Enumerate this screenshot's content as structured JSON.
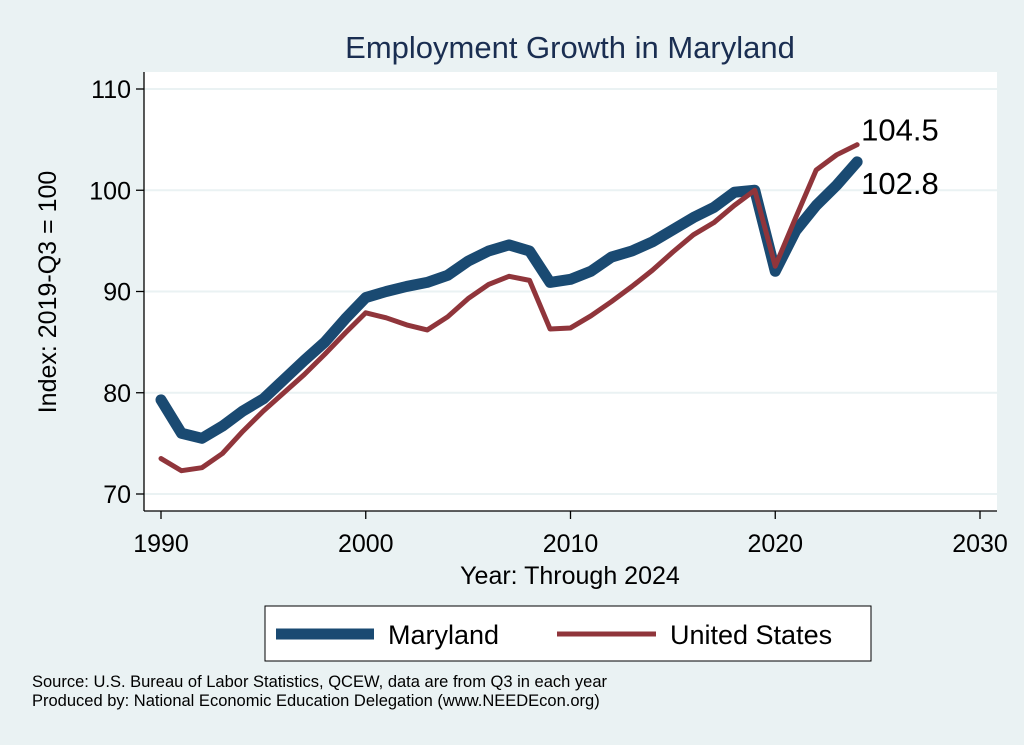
{
  "chart_data": {
    "type": "line",
    "title": "Employment Growth in Maryland",
    "xlabel": "Year: Through 2024",
    "ylabel": "Index: 2019-Q3 = 100",
    "xlim": [
      1990,
      2030
    ],
    "ylim": [
      70,
      110
    ],
    "xticks": [
      1990,
      2000,
      2010,
      2020,
      2030
    ],
    "yticks": [
      70,
      80,
      90,
      100,
      110
    ],
    "grid": true,
    "legend_position": "bottom",
    "x": [
      1990,
      1991,
      1992,
      1993,
      1994,
      1995,
      1996,
      1997,
      1998,
      1999,
      2000,
      2001,
      2002,
      2003,
      2004,
      2005,
      2006,
      2007,
      2008,
      2009,
      2010,
      2011,
      2012,
      2013,
      2014,
      2015,
      2016,
      2017,
      2018,
      2019,
      2020,
      2021,
      2022,
      2023,
      2024
    ],
    "series": [
      {
        "name": "Maryland",
        "color": "#1a4a72",
        "values": [
          79.3,
          76.0,
          75.5,
          76.7,
          78.2,
          79.4,
          81.3,
          83.2,
          85.0,
          87.3,
          89.4,
          90.0,
          90.5,
          90.9,
          91.6,
          93.0,
          94.0,
          94.6,
          94.0,
          90.9,
          91.2,
          92.0,
          93.4,
          94.0,
          94.9,
          96.1,
          97.3,
          98.3,
          99.8,
          100.0,
          92.0,
          96.0,
          98.5,
          100.5,
          102.8
        ],
        "end_label": "102.8"
      },
      {
        "name": "United States",
        "color": "#90353b",
        "values": [
          73.5,
          72.3,
          72.6,
          74.0,
          76.2,
          78.2,
          80.0,
          81.8,
          83.8,
          85.9,
          87.9,
          87.4,
          86.7,
          86.2,
          87.5,
          89.3,
          90.7,
          91.5,
          91.1,
          86.3,
          86.4,
          87.6,
          89.0,
          90.5,
          92.1,
          93.9,
          95.6,
          96.8,
          98.5,
          100.0,
          92.5,
          97.3,
          102.0,
          103.5,
          104.5
        ],
        "end_label": "104.5"
      }
    ]
  },
  "notes": {
    "source": "Source: U.S. Bureau of Labor Statistics, QCEW, data are from Q3 in each year",
    "produced_by": "Produced by: National Economic Education Delegation (www.NEEDEcon.org)"
  }
}
